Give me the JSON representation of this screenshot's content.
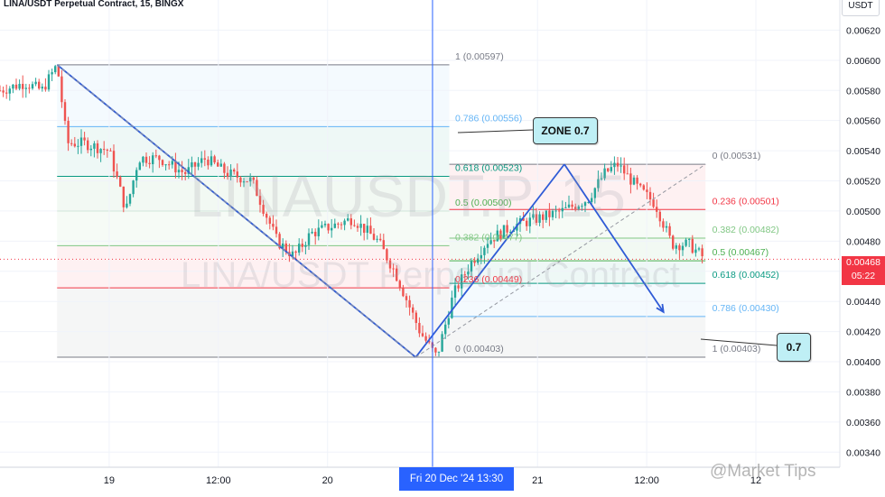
{
  "header": {
    "title": "LINA/USDT Perpetual Contract, 15, BINGX",
    "currency": "USDT"
  },
  "watermark": {
    "symbol": "LINAUSDT.P, 15",
    "description": "LINA/USDT Perpetual Contract",
    "site": "@Market Tips"
  },
  "price_tag": {
    "price": "0.00468",
    "countdown": "05:22"
  },
  "crosshair_time_label": "Fri 20 Dec '24   13:30",
  "callouts": {
    "zone": "ZONE 0.7",
    "target": "0.7"
  },
  "colors": {
    "up_candle": "#26a69a",
    "down_candle": "#ef5350",
    "pattern_line": "#2f5bd6",
    "fib_red": "#f23645",
    "fib_green": "#4caf50",
    "fib_teal": "#089981",
    "fib_blue": "#64b5f6",
    "fib_gray": "#787b86",
    "callout_fill": "#bfeff5",
    "price_tag": "#f23645",
    "time_tag": "#2962ff"
  },
  "chart_data": {
    "type": "candlestick",
    "symbol": "LINA/USDT Perpetual Contract",
    "interval": "15",
    "exchange": "BINGX",
    "ylim": [
      0.0033,
      0.0064
    ],
    "y_ticks": [
      "0.00340",
      "0.00360",
      "0.00380",
      "0.00400",
      "0.00420",
      "0.00440",
      "0.00460",
      "0.00480",
      "0.00500",
      "0.00520",
      "0.00540",
      "0.00560",
      "0.00580",
      "0.00600",
      "0.00620"
    ],
    "x_ticks": [
      {
        "label": "19",
        "pos": 0.13
      },
      {
        "label": "12:00",
        "pos": 0.26
      },
      {
        "label": "20",
        "pos": 0.39
      },
      {
        "label": "21",
        "pos": 0.64
      },
      {
        "label": "12:00",
        "pos": 0.77
      },
      {
        "label": "12",
        "pos": 0.9
      }
    ],
    "price_path": [
      [
        0.0,
        0.0058
      ],
      [
        0.03,
        0.00585
      ],
      [
        0.05,
        0.0058
      ],
      [
        0.068,
        0.00597
      ],
      [
        0.08,
        0.00545
      ],
      [
        0.1,
        0.00545
      ],
      [
        0.13,
        0.0054
      ],
      [
        0.15,
        0.005
      ],
      [
        0.165,
        0.00535
      ],
      [
        0.19,
        0.00535
      ],
      [
        0.22,
        0.00525
      ],
      [
        0.245,
        0.00535
      ],
      [
        0.27,
        0.00525
      ],
      [
        0.3,
        0.0052
      ],
      [
        0.33,
        0.0048
      ],
      [
        0.35,
        0.0047
      ],
      [
        0.37,
        0.00485
      ],
      [
        0.395,
        0.0049
      ],
      [
        0.42,
        0.00495
      ],
      [
        0.45,
        0.0048
      ],
      [
        0.47,
        0.0046
      ],
      [
        0.5,
        0.0042
      ],
      [
        0.52,
        0.00403
      ],
      [
        0.54,
        0.00445
      ],
      [
        0.56,
        0.00465
      ],
      [
        0.58,
        0.0048
      ],
      [
        0.61,
        0.0049
      ],
      [
        0.64,
        0.00495
      ],
      [
        0.67,
        0.005
      ],
      [
        0.7,
        0.00508
      ],
      [
        0.72,
        0.00525
      ],
      [
        0.735,
        0.00531
      ],
      [
        0.76,
        0.00515
      ],
      [
        0.78,
        0.00505
      ],
      [
        0.8,
        0.00478
      ],
      [
        0.82,
        0.00478
      ],
      [
        0.84,
        0.00468
      ]
    ],
    "fib_retracement_1": {
      "levels": [
        {
          "ratio": "1",
          "price": 0.00597,
          "label": "1 (0.00597)",
          "color": "#787b86"
        },
        {
          "ratio": "0.786",
          "price": 0.00556,
          "label": "0.786 (0.00556)",
          "color": "#64b5f6"
        },
        {
          "ratio": "0.618",
          "price": 0.00523,
          "label": "0.618 (0.00523)",
          "color": "#089981"
        },
        {
          "ratio": "0.5",
          "price": 0.005,
          "label": "0.5 (0.00500)",
          "color": "#4caf50"
        },
        {
          "ratio": "0.382",
          "price": 0.00477,
          "label": "0.382 (0.00477)",
          "color": "#81c784"
        },
        {
          "ratio": "0.236",
          "price": 0.00449,
          "label": "0.236 (0.00449)",
          "color": "#f23645"
        },
        {
          "ratio": "0",
          "price": 0.00403,
          "label": "0 (0.00403)",
          "color": "#787b86"
        }
      ]
    },
    "fib_retracement_2": {
      "levels": [
        {
          "ratio": "0",
          "price": 0.00531,
          "label": "0 (0.00531)",
          "color": "#787b86"
        },
        {
          "ratio": "0.236",
          "price": 0.00501,
          "label": "0.236 (0.00501)",
          "color": "#f23645"
        },
        {
          "ratio": "0.382",
          "price": 0.00482,
          "label": "0.382 (0.00482)",
          "color": "#81c784"
        },
        {
          "ratio": "0.5",
          "price": 0.00467,
          "label": "0.5 (0.00467)",
          "color": "#4caf50"
        },
        {
          "ratio": "0.618",
          "price": 0.00452,
          "label": "0.618 (0.00452)",
          "color": "#089981"
        },
        {
          "ratio": "0.786",
          "price": 0.0043,
          "label": "0.786 (0.00430)",
          "color": "#64b5f6"
        },
        {
          "ratio": "1",
          "price": 0.00403,
          "label": "1 (0.00403)",
          "color": "#787b86"
        }
      ]
    },
    "drawn_pattern": [
      {
        "t": 0.068,
        "price": 0.00597
      },
      {
        "t": 0.495,
        "price": 0.00403
      },
      {
        "t": 0.672,
        "price": 0.00531
      },
      {
        "t": 0.79,
        "price": 0.00433
      }
    ],
    "current_price": 0.00468,
    "crosshair_t": 0.515
  }
}
